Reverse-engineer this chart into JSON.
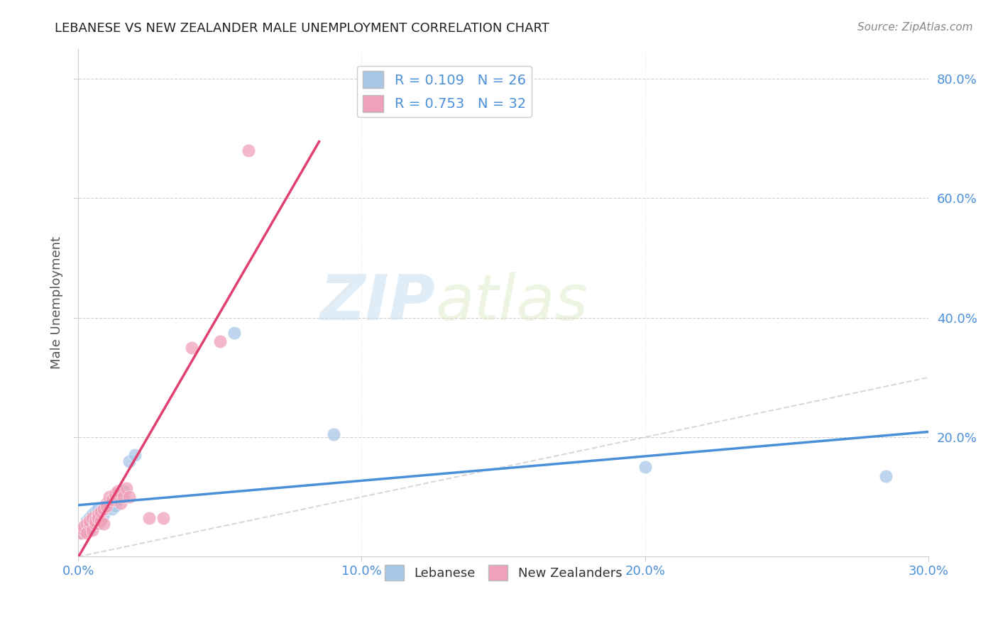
{
  "title": "LEBANESE VS NEW ZEALANDER MALE UNEMPLOYMENT CORRELATION CHART",
  "source": "Source: ZipAtlas.com",
  "ylabel": "Male Unemployment",
  "xlim": [
    0.0,
    0.3
  ],
  "ylim": [
    0.0,
    0.85
  ],
  "xtick_labels": [
    "0.0%",
    "10.0%",
    "20.0%",
    "30.0%"
  ],
  "xtick_values": [
    0.0,
    0.1,
    0.2,
    0.3
  ],
  "ytick_labels": [
    "20.0%",
    "40.0%",
    "60.0%",
    "80.0%"
  ],
  "ytick_values": [
    0.2,
    0.4,
    0.6,
    0.8
  ],
  "legend_R1": "R = 0.109",
  "legend_N1": "N = 26",
  "legend_R2": "R = 0.753",
  "legend_N2": "N = 32",
  "color_lebanese": "#a8c8e8",
  "color_nz": "#f0a0b8",
  "color_lebanese_line": "#4a90d9",
  "color_nz_line": "#e04070",
  "color_diag": "#c8c8c8",
  "watermark_zip": "ZIP",
  "watermark_atlas": "atlas",
  "lebanese_x": [
    0.001,
    0.002,
    0.003,
    0.003,
    0.004,
    0.004,
    0.005,
    0.005,
    0.006,
    0.006,
    0.007,
    0.007,
    0.008,
    0.009,
    0.01,
    0.011,
    0.012,
    0.013,
    0.014,
    0.016,
    0.018,
    0.02,
    0.055,
    0.09,
    0.2,
    0.285
  ],
  "lebanese_y": [
    0.04,
    0.05,
    0.055,
    0.06,
    0.045,
    0.065,
    0.05,
    0.07,
    0.06,
    0.075,
    0.055,
    0.08,
    0.065,
    0.07,
    0.08,
    0.09,
    0.08,
    0.085,
    0.095,
    0.11,
    0.16,
    0.17,
    0.375,
    0.205,
    0.15,
    0.135
  ],
  "nz_x": [
    0.001,
    0.002,
    0.002,
    0.003,
    0.003,
    0.004,
    0.004,
    0.005,
    0.005,
    0.006,
    0.006,
    0.007,
    0.007,
    0.008,
    0.008,
    0.009,
    0.009,
    0.01,
    0.01,
    0.011,
    0.012,
    0.013,
    0.014,
    0.015,
    0.016,
    0.017,
    0.018,
    0.025,
    0.03,
    0.04,
    0.05,
    0.06
  ],
  "nz_y": [
    0.04,
    0.045,
    0.05,
    0.055,
    0.04,
    0.055,
    0.06,
    0.045,
    0.065,
    0.055,
    0.06,
    0.07,
    0.065,
    0.06,
    0.075,
    0.08,
    0.055,
    0.09,
    0.085,
    0.1,
    0.095,
    0.105,
    0.11,
    0.09,
    0.1,
    0.115,
    0.1,
    0.065,
    0.065,
    0.35,
    0.36,
    0.68
  ]
}
